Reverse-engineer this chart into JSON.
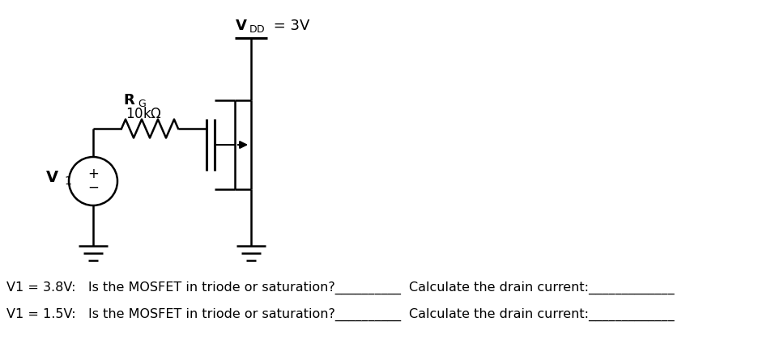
{
  "bg_color": "#ffffff",
  "line_color": "#000000",
  "vdd_label": "= 3V",
  "vdd_sub": "DD",
  "rg_label1": "R",
  "rg_sub": "G",
  "rg_label2": "10kΩ",
  "v1_main": "V",
  "v1_sub": "1",
  "q1_text": "V1 = 3.8V:   Is the MOSFET in triode or saturation?__________",
  "q1_right": "Calculate the drain current:_____________",
  "q2_text": "V1 = 1.5V:   Is the MOSFET in triode or saturation?__________",
  "q2_right": "Calculate the drain current:_____________",
  "fig_w": 9.52,
  "fig_h": 4.29,
  "dpi": 100
}
